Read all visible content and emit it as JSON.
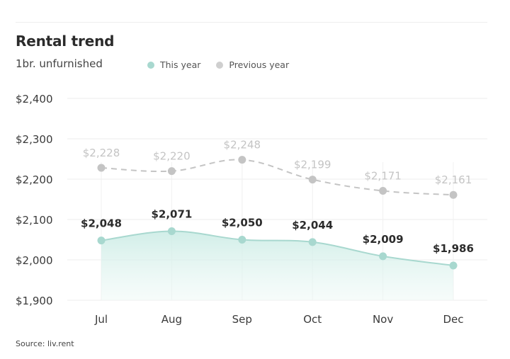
{
  "header": {
    "title": "Rental trend",
    "subtitle": "1br. unfurnished"
  },
  "legend": {
    "items": [
      {
        "label": "This year",
        "color": "#a8d8cf"
      },
      {
        "label": "Previous year",
        "color": "#cfcfcf"
      }
    ]
  },
  "footer": {
    "source": "Source: liv.rent"
  },
  "chart_data": {
    "type": "line",
    "categories": [
      "Jul",
      "Aug",
      "Sep",
      "Oct",
      "Nov",
      "Dec"
    ],
    "ylim": [
      1900,
      2400
    ],
    "yticks": [
      1900,
      2000,
      2100,
      2200,
      2300,
      2400
    ],
    "ytick_labels": [
      "$1,900",
      "$2,000",
      "$2,100",
      "$2,200",
      "$2,300",
      "$2,400"
    ],
    "grid": true,
    "legend_position": "top",
    "series": [
      {
        "name": "This year",
        "values": [
          2048,
          2071,
          2050,
          2044,
          2009,
          1986
        ],
        "labels": [
          "$2,048",
          "$2,071",
          "$2,050",
          "$2,044",
          "$2,009",
          "$1,986"
        ],
        "color": "#a8d8cf",
        "style": "solid-area"
      },
      {
        "name": "Previous year",
        "values": [
          2228,
          2220,
          2248,
          2199,
          2171,
          2161
        ],
        "labels": [
          "$2,228",
          "$2,220",
          "$2,248",
          "$2,199",
          "$2,171",
          "$2,161"
        ],
        "color": "#c4c4c4",
        "style": "dashed"
      }
    ]
  }
}
